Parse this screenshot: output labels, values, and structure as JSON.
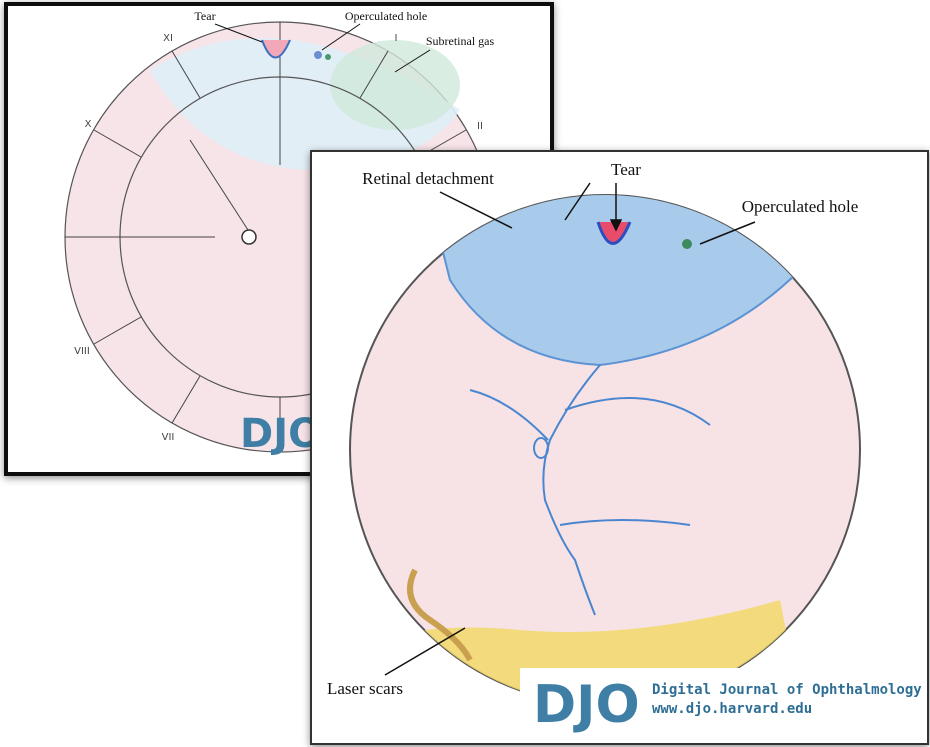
{
  "back_panel": {
    "labels": {
      "tear": "Tear",
      "operculated_hole": "Operculated hole",
      "subretinal_gas": "Subretinal gas"
    },
    "clock_hours": [
      "XI",
      "I",
      "II",
      "X",
      "VIII",
      "VII"
    ],
    "logo": "DJO"
  },
  "front_panel": {
    "labels": {
      "retinal_detachment": "Retinal detachment",
      "tear": "Tear",
      "operculated_hole": "Operculated hole",
      "laser_scars": "Laser scars"
    },
    "logo": "DJO",
    "journal_name": "Digital Journal of Ophthalmology",
    "journal_url": "www.djo.harvard.edu"
  }
}
